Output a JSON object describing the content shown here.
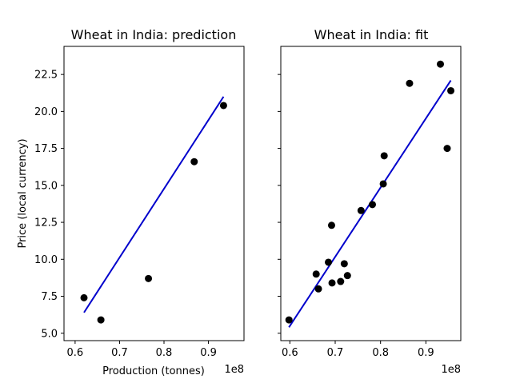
{
  "chart_data": [
    {
      "type": "scatter",
      "title": "Wheat in India: prediction",
      "xlabel": "Production (tonnes)",
      "ylabel": "Price (local currency)",
      "x_offset_label": "1e8",
      "xlim": [
        0.575,
        0.98
      ],
      "ylim": [
        4.5,
        24.4
      ],
      "xticks": [
        0.6,
        0.7,
        0.8,
        0.9
      ],
      "xtick_labels": [
        "0.6",
        "0.7",
        "0.8",
        "0.9"
      ],
      "yticks": [
        5.0,
        7.5,
        10.0,
        12.5,
        15.0,
        17.5,
        20.0,
        22.5
      ],
      "ytick_labels": [
        "5.0",
        "7.5",
        "10.0",
        "12.5",
        "15.0",
        "17.5",
        "20.0",
        "22.5"
      ],
      "points": {
        "x": [
          0.62,
          0.658,
          0.765,
          0.868,
          0.934
        ],
        "y": [
          7.4,
          5.9,
          8.7,
          16.6,
          20.4
        ]
      },
      "line": {
        "x": [
          0.62,
          0.934
        ],
        "y": [
          6.4,
          21.0
        ]
      },
      "point_color": "#000000",
      "line_color": "#0000cc"
    },
    {
      "type": "scatter",
      "title": "Wheat in India: fit",
      "xlabel": "",
      "ylabel": "",
      "x_offset_label": "1e8",
      "xlim": [
        0.58,
        0.977
      ],
      "ylim": [
        4.5,
        24.4
      ],
      "xticks": [
        0.6,
        0.7,
        0.8,
        0.9
      ],
      "xtick_labels": [
        "0.6",
        "0.7",
        "0.8",
        "0.9"
      ],
      "yticks": [
        5.0,
        7.5,
        10.0,
        12.5,
        15.0,
        17.5,
        20.0,
        22.5
      ],
      "ytick_labels": [],
      "points": {
        "x": [
          0.598,
          0.658,
          0.663,
          0.685,
          0.692,
          0.693,
          0.712,
          0.72,
          0.727,
          0.757,
          0.782,
          0.806,
          0.808,
          0.864,
          0.932,
          0.947,
          0.955
        ],
        "y": [
          5.9,
          9.0,
          8.0,
          9.8,
          12.3,
          8.4,
          8.5,
          9.7,
          8.9,
          13.3,
          13.7,
          15.1,
          17.0,
          21.9,
          23.2,
          17.5,
          21.4
        ]
      },
      "line": {
        "x": [
          0.598,
          0.955
        ],
        "y": [
          5.4,
          22.1
        ]
      },
      "point_color": "#000000",
      "line_color": "#0000cc"
    }
  ]
}
